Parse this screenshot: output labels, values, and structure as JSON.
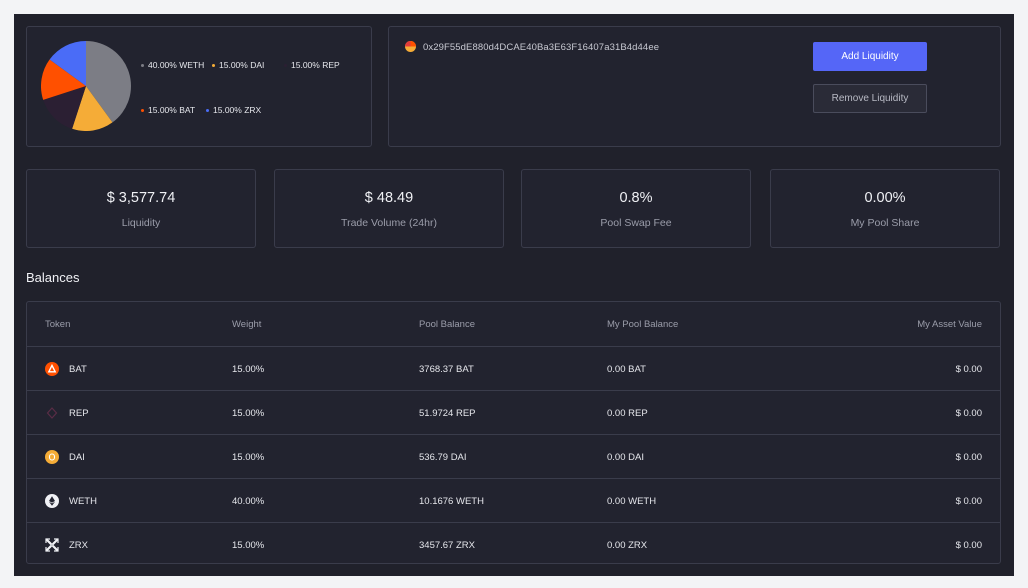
{
  "pool": {
    "allocations": [
      {
        "symbol": "WETH",
        "percent": 40,
        "label": "40.00% WETH",
        "color": "#7c7d85"
      },
      {
        "symbol": "DAI",
        "percent": 15,
        "label": "15.00% DAI",
        "color": "#f5ac37"
      },
      {
        "symbol": "REP",
        "percent": 15,
        "label": "15.00% REP",
        "color": "#2b1f33"
      },
      {
        "symbol": "BAT",
        "percent": 15,
        "label": "15.00% BAT",
        "color": "#ff5000"
      },
      {
        "symbol": "ZRX",
        "percent": 15,
        "label": "15.00% ZRX",
        "color": "#4a6cf7"
      }
    ],
    "address": "0x29F55dE880d4DCAE40Ba3E63F16407a31B4d44ee"
  },
  "actions": {
    "add_label": "Add Liquidity",
    "remove_label": "Remove Liquidity"
  },
  "stats": [
    {
      "value": "$ 3,577.74",
      "label": "Liquidity"
    },
    {
      "value": "$ 48.49",
      "label": "Trade Volume (24hr)"
    },
    {
      "value": "0.8%",
      "label": "Pool Swap Fee"
    },
    {
      "value": "0.00%",
      "label": "My Pool Share"
    }
  ],
  "balances": {
    "title": "Balances",
    "columns": [
      "Token",
      "Weight",
      "Pool Balance",
      "My Pool Balance",
      "My Asset Value"
    ],
    "rows": [
      {
        "token": "BAT",
        "icon": "bat-icon",
        "weight": "15.00%",
        "pool_balance": "3768.37 BAT",
        "my_pool_balance": "0.00 BAT",
        "my_asset_value": "$ 0.00"
      },
      {
        "token": "REP",
        "icon": "rep-icon",
        "weight": "15.00%",
        "pool_balance": "51.9724 REP",
        "my_pool_balance": "0.00 REP",
        "my_asset_value": "$ 0.00"
      },
      {
        "token": "DAI",
        "icon": "dai-icon",
        "weight": "15.00%",
        "pool_balance": "536.79 DAI",
        "my_pool_balance": "0.00 DAI",
        "my_asset_value": "$ 0.00"
      },
      {
        "token": "WETH",
        "icon": "weth-icon",
        "weight": "40.00%",
        "pool_balance": "10.1676 WETH",
        "my_pool_balance": "0.00 WETH",
        "my_asset_value": "$ 0.00"
      },
      {
        "token": "ZRX",
        "icon": "zrx-icon",
        "weight": "15.00%",
        "pool_balance": "3457.67 ZRX",
        "my_pool_balance": "0.00 ZRX",
        "my_asset_value": "$ 0.00"
      }
    ]
  }
}
